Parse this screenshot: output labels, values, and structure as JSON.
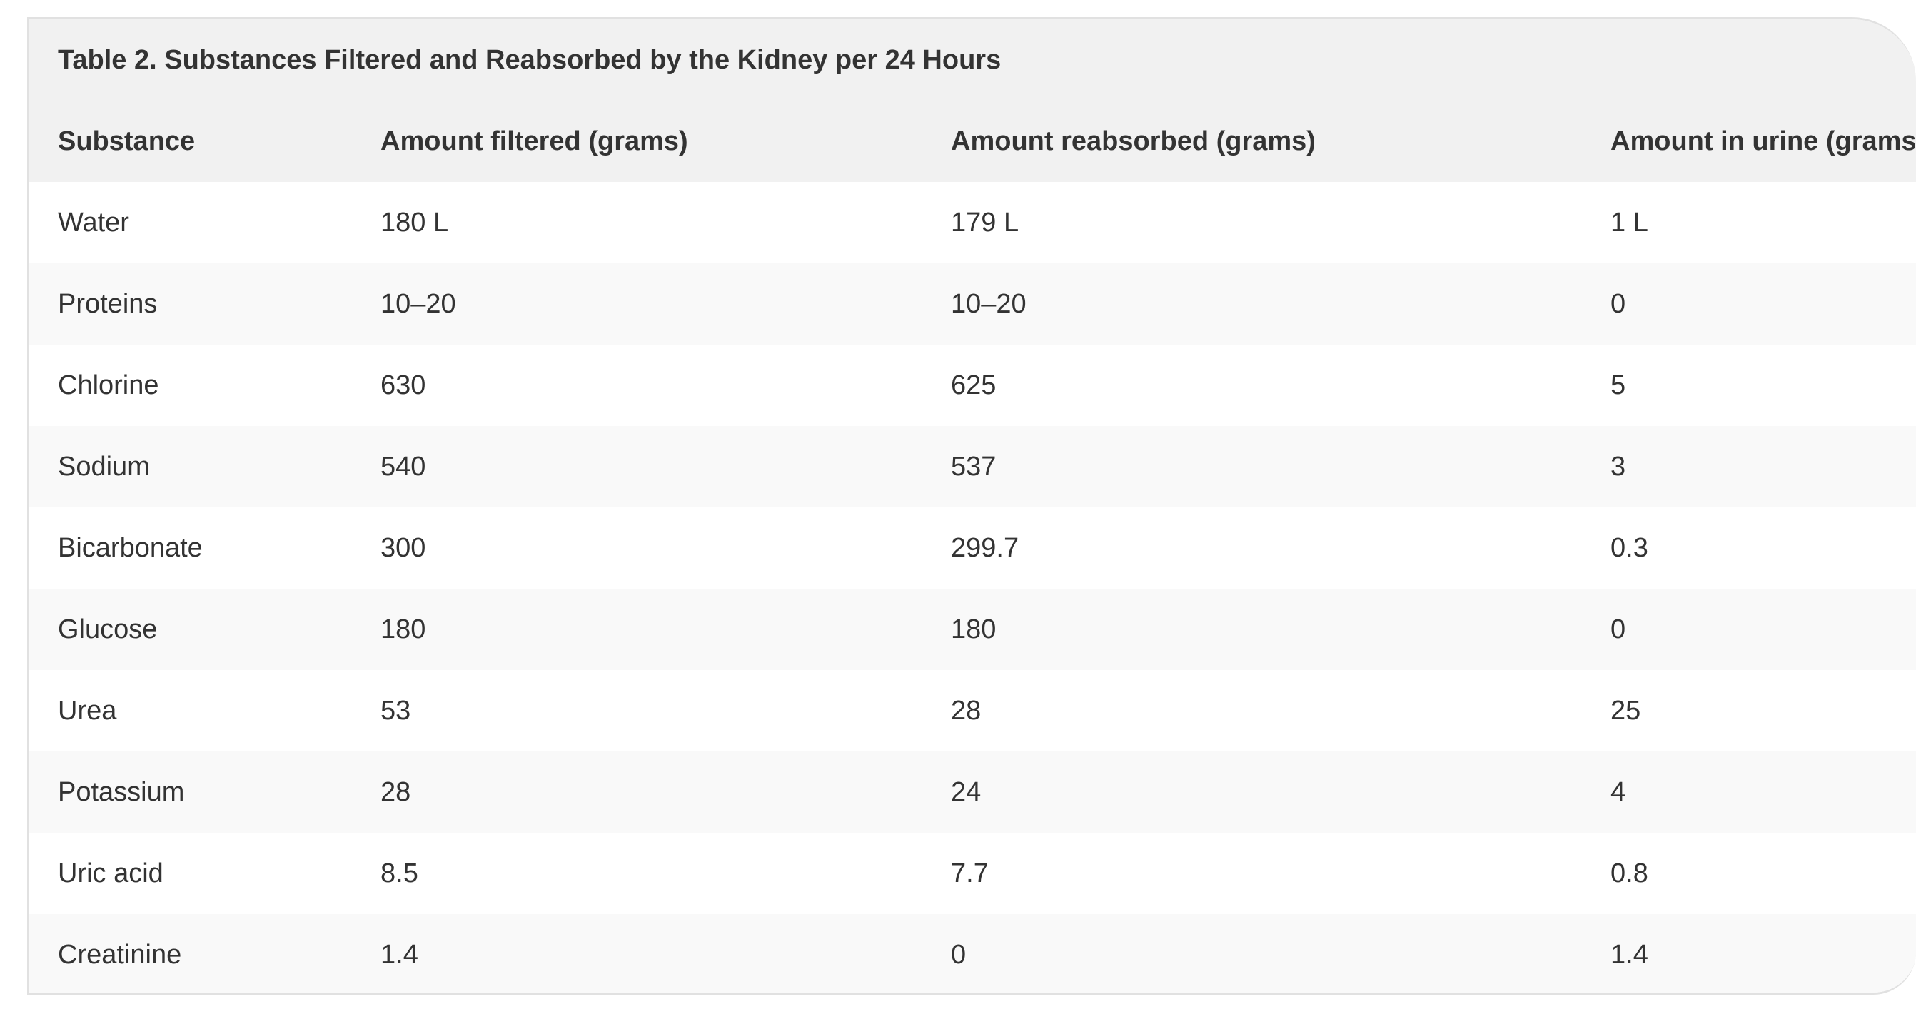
{
  "table": {
    "caption": "Table 2. Substances Filtered and Reabsorbed by the Kidney per 24 Hours",
    "headers": [
      "Substance",
      "Amount filtered (grams)",
      "Amount reabsorbed (grams)",
      "Amount in urine (grams)"
    ],
    "rows": [
      [
        "Water",
        "180 L",
        "179 L",
        "1 L"
      ],
      [
        "Proteins",
        "10–20",
        "10–20",
        "0"
      ],
      [
        "Chlorine",
        "630",
        "625",
        "5"
      ],
      [
        "Sodium",
        "540",
        "537",
        "3"
      ],
      [
        "Bicarbonate",
        "300",
        "299.7",
        "0.3"
      ],
      [
        "Glucose",
        "180",
        "180",
        "0"
      ],
      [
        "Urea",
        "53",
        "28",
        "25"
      ],
      [
        "Potassium",
        "28",
        "24",
        "4"
      ],
      [
        "Uric acid",
        "8.5",
        "7.7",
        "0.8"
      ],
      [
        "Creatinine",
        "1.4",
        "0",
        "1.4"
      ]
    ]
  }
}
